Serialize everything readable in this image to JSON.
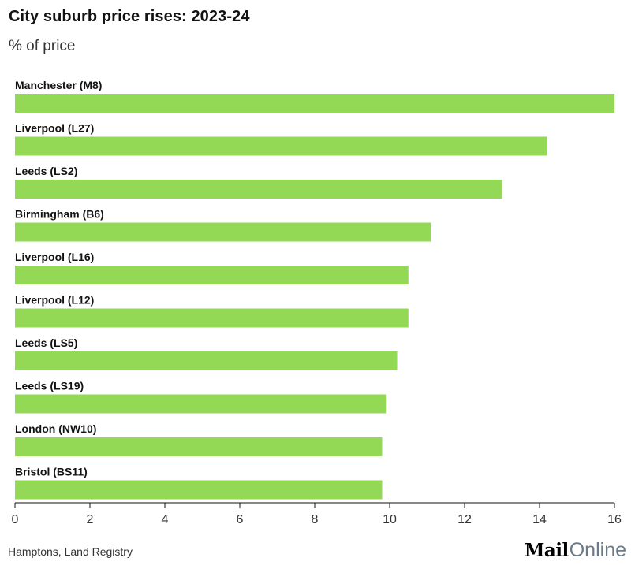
{
  "header": {
    "title": "City suburb price rises: 2023-24",
    "subtitle": "% of price"
  },
  "footer": {
    "source": "Hamptons, Land Registry",
    "logo_bold": "Mail",
    "logo_light": "Online"
  },
  "colors": {
    "bar": "#94d956",
    "axis": "#121212"
  },
  "chart_data": {
    "type": "bar",
    "orientation": "horizontal",
    "title": "City suburb price rises: 2023-24",
    "subtitle": "% of price",
    "xlabel": "",
    "ylabel": "",
    "categories": [
      "Manchester (M8)",
      "Liverpool (L27)",
      "Leeds (LS2)",
      "Birmingham (B6)",
      "Liverpool (L16)",
      "Liverpool (L12)",
      "Leeds (LS5)",
      "Leeds (LS19)",
      "London (NW10)",
      "Bristol (BS11)"
    ],
    "values": [
      16.0,
      14.2,
      13.0,
      11.1,
      10.5,
      10.5,
      10.2,
      9.9,
      9.8,
      9.8
    ],
    "xlim": [
      0,
      16
    ],
    "xticks": [
      0,
      2,
      4,
      6,
      8,
      10,
      12,
      14,
      16
    ],
    "xtick_labels": [
      "0",
      "2",
      "4",
      "6",
      "8",
      "10",
      "12",
      "14",
      "16"
    ],
    "grid": false,
    "legend": "none",
    "source": "Hamptons, Land Registry"
  }
}
